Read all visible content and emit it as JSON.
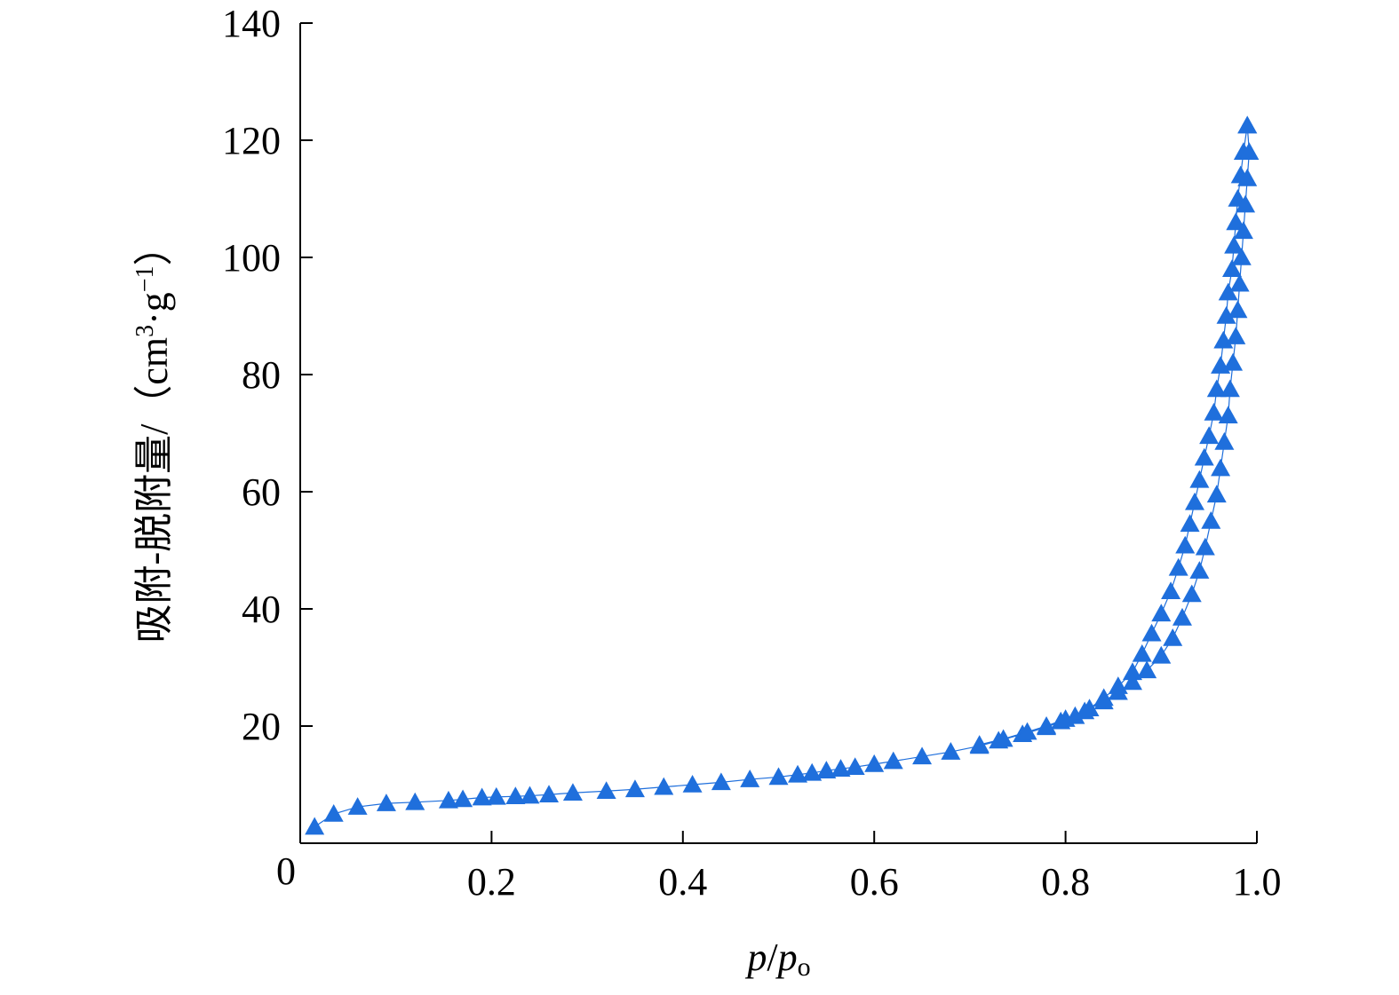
{
  "chart_data": {
    "type": "scatter",
    "title": "",
    "xlabel": {
      "italic_1": "p",
      "slash": "/",
      "italic_2": "p",
      "subscript": "o"
    },
    "ylabel": {
      "prefix": "吸附-脱附量/（cm",
      "sup_3": "3",
      "middle": "·g",
      "sup_minus1": "−1",
      "suffix": "）"
    },
    "xlim": [
      0,
      1.0
    ],
    "ylim": [
      0,
      140
    ],
    "x_ticks": [
      0,
      0.2,
      0.4,
      0.6,
      0.8,
      1.0
    ],
    "x_tick_labels": [
      "0",
      "0.2",
      "0.4",
      "0.6",
      "0.8",
      "1.0"
    ],
    "y_ticks": [
      20,
      40,
      60,
      80,
      100,
      120,
      140
    ],
    "y_tick_labels": [
      "20",
      "40",
      "60",
      "80",
      "100",
      "120",
      "140"
    ],
    "grid": false,
    "legend": "none",
    "marker": "triangle",
    "color": "#1f6fdc",
    "series": [
      {
        "values": [
          [
            0.015,
            2.8
          ],
          [
            0.035,
            5.0
          ],
          [
            0.06,
            6.2
          ],
          [
            0.09,
            6.8
          ],
          [
            0.12,
            7.0
          ],
          [
            0.155,
            7.3
          ],
          [
            0.17,
            7.5
          ],
          [
            0.19,
            7.8
          ],
          [
            0.205,
            7.9
          ],
          [
            0.225,
            8.0
          ],
          [
            0.24,
            8.1
          ],
          [
            0.26,
            8.3
          ],
          [
            0.285,
            8.6
          ],
          [
            0.32,
            8.9
          ],
          [
            0.35,
            9.2
          ],
          [
            0.38,
            9.6
          ],
          [
            0.41,
            10.0
          ],
          [
            0.44,
            10.4
          ],
          [
            0.47,
            10.9
          ],
          [
            0.5,
            11.3
          ],
          [
            0.52,
            11.7
          ],
          [
            0.535,
            12.0
          ],
          [
            0.55,
            12.4
          ],
          [
            0.565,
            12.7
          ],
          [
            0.58,
            13.0
          ],
          [
            0.6,
            13.5
          ],
          [
            0.62,
            14.0
          ],
          [
            0.65,
            14.8
          ],
          [
            0.68,
            15.6
          ],
          [
            0.71,
            16.6
          ],
          [
            0.73,
            17.5
          ],
          [
            0.755,
            18.6
          ],
          [
            0.78,
            19.8
          ],
          [
            0.795,
            20.8
          ],
          [
            0.81,
            21.7
          ],
          [
            0.825,
            23.0
          ],
          [
            0.84,
            24.8
          ],
          [
            0.855,
            26.8
          ],
          [
            0.87,
            29.2
          ],
          [
            0.88,
            32.3
          ],
          [
            0.89,
            35.8
          ],
          [
            0.9,
            39.2
          ],
          [
            0.91,
            43.0
          ],
          [
            0.918,
            47.0
          ],
          [
            0.925,
            50.8
          ],
          [
            0.93,
            54.5
          ],
          [
            0.935,
            58.2
          ],
          [
            0.94,
            62.0
          ],
          [
            0.945,
            65.8
          ],
          [
            0.95,
            69.5
          ],
          [
            0.955,
            73.5
          ],
          [
            0.958,
            77.5
          ],
          [
            0.962,
            81.5
          ],
          [
            0.965,
            85.8
          ],
          [
            0.968,
            90.0
          ],
          [
            0.97,
            94.0
          ],
          [
            0.974,
            98.0
          ],
          [
            0.976,
            102.0
          ],
          [
            0.978,
            106.0
          ],
          [
            0.98,
            110.0
          ],
          [
            0.983,
            114.0
          ],
          [
            0.986,
            118.0
          ],
          [
            0.99,
            122.5
          ]
        ]
      },
      {
        "values": [
          [
            0.99,
            122.5
          ],
          [
            0.992,
            118.0
          ],
          [
            0.99,
            113.5
          ],
          [
            0.988,
            109.0
          ],
          [
            0.986,
            104.5
          ],
          [
            0.984,
            100.0
          ],
          [
            0.982,
            95.5
          ],
          [
            0.98,
            91.0
          ],
          [
            0.978,
            86.5
          ],
          [
            0.975,
            82.0
          ],
          [
            0.972,
            77.5
          ],
          [
            0.97,
            73.0
          ],
          [
            0.966,
            68.5
          ],
          [
            0.962,
            64.0
          ],
          [
            0.958,
            59.5
          ],
          [
            0.952,
            55.0
          ],
          [
            0.946,
            50.5
          ],
          [
            0.94,
            46.5
          ],
          [
            0.932,
            42.5
          ],
          [
            0.922,
            38.5
          ],
          [
            0.912,
            35.0
          ],
          [
            0.9,
            32.0
          ],
          [
            0.885,
            29.5
          ],
          [
            0.87,
            27.5
          ],
          [
            0.855,
            25.8
          ],
          [
            0.84,
            24.2
          ],
          [
            0.82,
            22.5
          ],
          [
            0.8,
            21.2
          ],
          [
            0.78,
            20.0
          ],
          [
            0.76,
            19.0
          ],
          [
            0.735,
            17.8
          ],
          [
            0.71,
            16.8
          ]
        ]
      }
    ]
  }
}
